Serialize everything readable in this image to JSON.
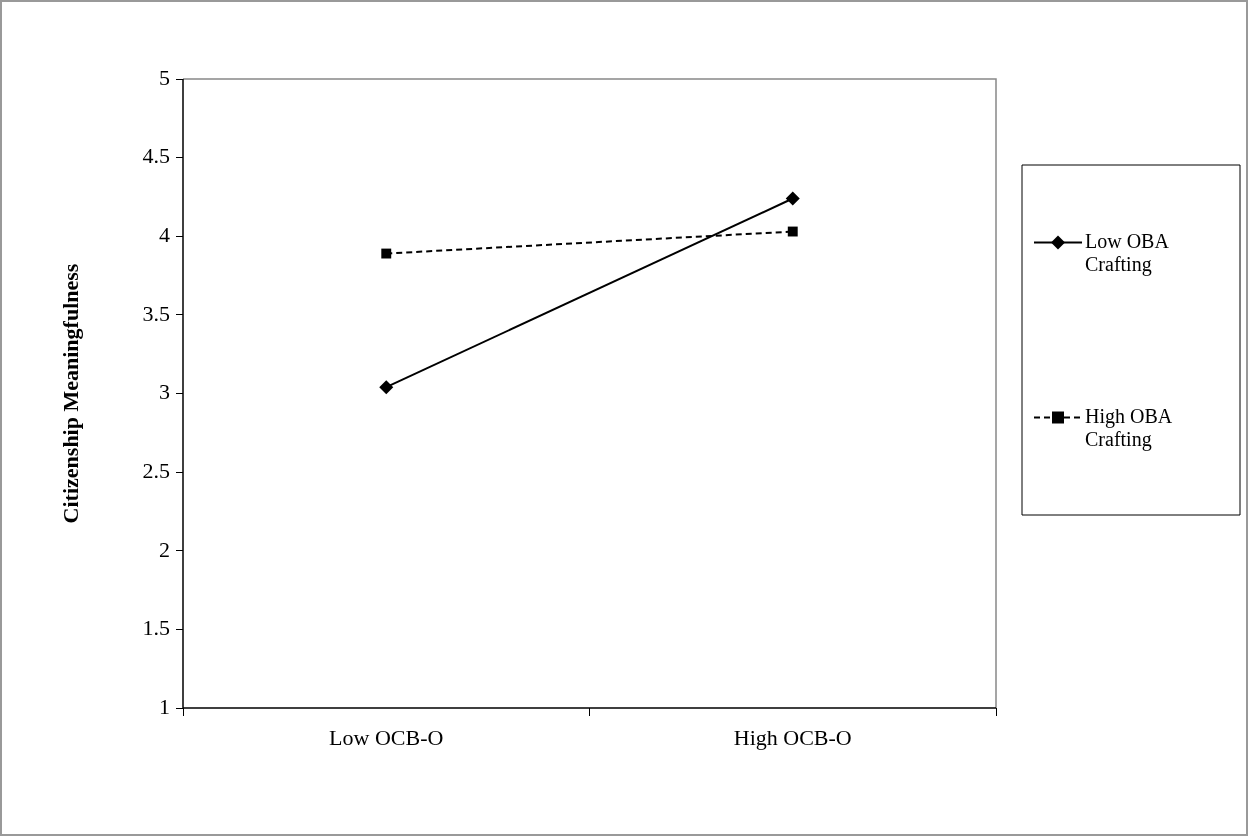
{
  "chart_data": {
    "type": "line",
    "ylabel": "Citizenship Meaningfulness",
    "categories": [
      "Low OCB-O",
      "High OCB-O"
    ],
    "series": [
      {
        "name": "Low OBA Crafting",
        "color": "#000000",
        "values": [
          3.04,
          4.24
        ],
        "marker": "diamond",
        "line_style": "solid"
      },
      {
        "name": "High OBA Crafting",
        "color": "#000000",
        "values": [
          3.89,
          4.03
        ],
        "marker": "square",
        "line_style": "dashed"
      }
    ],
    "ylim": [
      1,
      5
    ],
    "yticks": [
      1,
      1.5,
      2,
      2.5,
      3,
      3.5,
      4,
      4.5,
      5
    ],
    "grid": false,
    "legend": "right"
  }
}
